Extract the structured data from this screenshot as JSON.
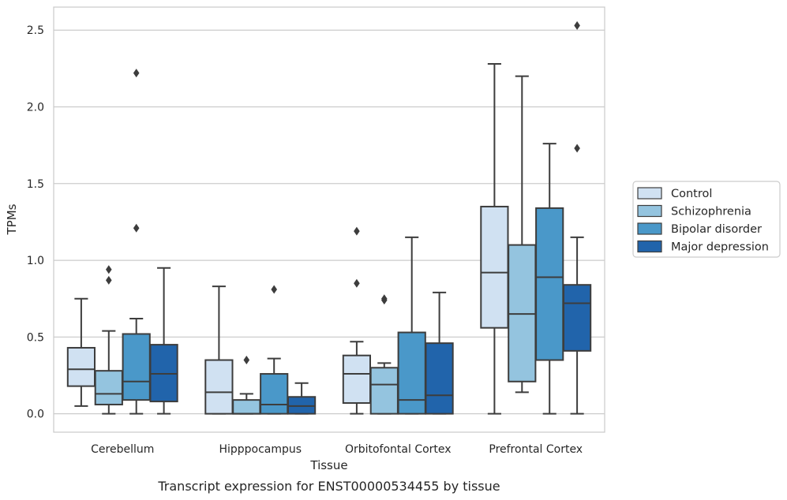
{
  "chart_data": {
    "type": "box",
    "title": "",
    "caption": "Transcript expression for ENST00000534455 by tissue",
    "xlabel": "Tissue",
    "ylabel": "TPMs",
    "ylim": [
      -0.12,
      2.65
    ],
    "yticks": [
      0.0,
      0.5,
      1.0,
      1.5,
      2.0,
      2.5
    ],
    "ytick_labels": [
      "0.0",
      "0.5",
      "1.0",
      "1.5",
      "2.0",
      "2.5"
    ],
    "grid": true,
    "legend_position": "right",
    "categories": [
      "Cerebellum",
      "Hipppocampus",
      "Orbitofontal Cortex",
      "Prefrontal Cortex"
    ],
    "series": [
      {
        "name": "Control",
        "color": "#d0e1f2",
        "boxes": [
          {
            "whislo": 0.05,
            "q1": 0.18,
            "med": 0.29,
            "q3": 0.43,
            "whishi": 0.75,
            "fliers": []
          },
          {
            "whislo": 0.0,
            "q1": 0.0,
            "med": 0.14,
            "q3": 0.35,
            "whishi": 0.83,
            "fliers": []
          },
          {
            "whislo": 0.0,
            "q1": 0.07,
            "med": 0.26,
            "q3": 0.38,
            "whishi": 0.47,
            "fliers": [
              0.85,
              1.19
            ]
          },
          {
            "whislo": 0.0,
            "q1": 0.56,
            "med": 0.92,
            "q3": 1.35,
            "whishi": 2.28,
            "fliers": []
          }
        ]
      },
      {
        "name": "Schizophrenia",
        "color": "#94c4df",
        "boxes": [
          {
            "whislo": 0.0,
            "q1": 0.06,
            "med": 0.13,
            "q3": 0.28,
            "whishi": 0.54,
            "fliers": [
              0.87,
              0.94
            ]
          },
          {
            "whislo": 0.0,
            "q1": 0.0,
            "med": 0.0,
            "q3": 0.09,
            "whishi": 0.13,
            "fliers": [
              0.35
            ]
          },
          {
            "whislo": 0.0,
            "q1": 0.0,
            "med": 0.19,
            "q3": 0.3,
            "whishi": 0.33,
            "fliers": [
              0.74,
              0.75
            ]
          },
          {
            "whislo": 0.14,
            "q1": 0.21,
            "med": 0.65,
            "q3": 1.1,
            "whishi": 2.2,
            "fliers": []
          }
        ]
      },
      {
        "name": "Bipolar disorder",
        "color": "#4a98c9",
        "boxes": [
          {
            "whislo": 0.0,
            "q1": 0.09,
            "med": 0.21,
            "q3": 0.52,
            "whishi": 0.62,
            "fliers": [
              1.21,
              2.22
            ]
          },
          {
            "whislo": 0.0,
            "q1": 0.0,
            "med": 0.06,
            "q3": 0.26,
            "whishi": 0.36,
            "fliers": [
              0.81
            ]
          },
          {
            "whislo": 0.0,
            "q1": 0.0,
            "med": 0.09,
            "q3": 0.53,
            "whishi": 1.15,
            "fliers": []
          },
          {
            "whislo": 0.0,
            "q1": 0.35,
            "med": 0.89,
            "q3": 1.34,
            "whishi": 1.76,
            "fliers": []
          }
        ]
      },
      {
        "name": "Major depression",
        "color": "#2164ab",
        "boxes": [
          {
            "whislo": 0.0,
            "q1": 0.08,
            "med": 0.26,
            "q3": 0.45,
            "whishi": 0.95,
            "fliers": []
          },
          {
            "whislo": 0.0,
            "q1": 0.0,
            "med": 0.05,
            "q3": 0.11,
            "whishi": 0.2,
            "fliers": []
          },
          {
            "whislo": 0.0,
            "q1": 0.0,
            "med": 0.12,
            "q3": 0.46,
            "whishi": 0.79,
            "fliers": []
          },
          {
            "whislo": 0.0,
            "q1": 0.41,
            "med": 0.72,
            "q3": 0.84,
            "whishi": 1.15,
            "fliers": [
              1.73,
              2.53
            ]
          }
        ]
      }
    ]
  }
}
